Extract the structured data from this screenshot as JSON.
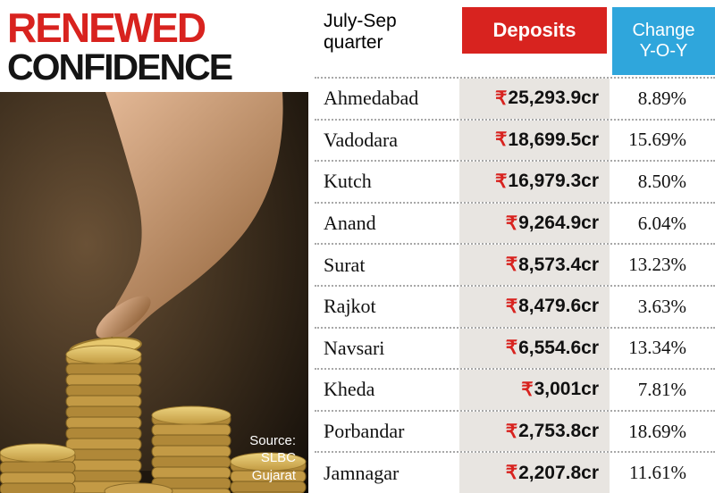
{
  "title": {
    "line1": "RENEWED",
    "line2": "CONFIDENCE"
  },
  "photo": {
    "source": "Source:\nSLBC\nGujarat"
  },
  "table": {
    "currency_symbol": "₹",
    "headers": {
      "period": "July-Sep\nquarter",
      "deposits": "Deposits",
      "change": "Change\nY-O-Y"
    },
    "rows": [
      {
        "district": "Ahmedabad",
        "deposits": "25,293.9cr",
        "change": "8.89%"
      },
      {
        "district": "Vadodara",
        "deposits": "18,699.5cr",
        "change": "15.69%"
      },
      {
        "district": "Kutch",
        "deposits": "16,979.3cr",
        "change": "8.50%"
      },
      {
        "district": "Anand",
        "deposits": "9,264.9cr",
        "change": "6.04%"
      },
      {
        "district": "Surat",
        "deposits": "8,573.4cr",
        "change": "13.23%"
      },
      {
        "district": "Rajkot",
        "deposits": "8,479.6cr",
        "change": "3.63%"
      },
      {
        "district": "Navsari",
        "deposits": "6,554.6cr",
        "change": "13.34%"
      },
      {
        "district": "Kheda",
        "deposits": "3,001cr",
        "change": "7.81%"
      },
      {
        "district": "Porbandar",
        "deposits": "2,753.8cr",
        "change": "18.69%"
      },
      {
        "district": "Jamnagar",
        "deposits": "2,207.8cr",
        "change": "11.61%"
      }
    ]
  },
  "colors": {
    "red": "#d8231f",
    "blue": "#2fa6dc",
    "deposit_column_bg": "#e8e5e1",
    "text": "#111111"
  },
  "chart_data": {
    "type": "table",
    "title": "Renewed Confidence",
    "subtitle": "July-Sep quarter bank deposits by district, Gujarat",
    "columns": [
      "July-Sep quarter",
      "Deposits",
      "Change Y-O-Y"
    ],
    "rows": [
      [
        "Ahmedabad",
        "₹25,293.9cr",
        "8.89%"
      ],
      [
        "Vadodara",
        "₹18,699.5cr",
        "15.69%"
      ],
      [
        "Kutch",
        "₹16,979.3cr",
        "8.50%"
      ],
      [
        "Anand",
        "₹9,264.9cr",
        "6.04%"
      ],
      [
        "Surat",
        "₹8,573.4cr",
        "13.23%"
      ],
      [
        "Rajkot",
        "₹8,479.6cr",
        "3.63%"
      ],
      [
        "Navsari",
        "₹6,554.6cr",
        "13.34%"
      ],
      [
        "Kheda",
        "₹3,001cr",
        "7.81%"
      ],
      [
        "Porbandar",
        "₹2,753.8cr",
        "18.69%"
      ],
      [
        "Jamnagar",
        "₹2,207.8cr",
        "11.61%"
      ]
    ],
    "deposits_cr": [
      25293.9,
      18699.5,
      16979.3,
      9264.9,
      8573.4,
      8479.6,
      6554.6,
      3001,
      2753.8,
      2207.8
    ],
    "change_yoy_pct": [
      8.89,
      15.69,
      8.5,
      6.04,
      13.23,
      3.63,
      13.34,
      7.81,
      18.69,
      11.61
    ],
    "source": "SLBC Gujarat"
  }
}
